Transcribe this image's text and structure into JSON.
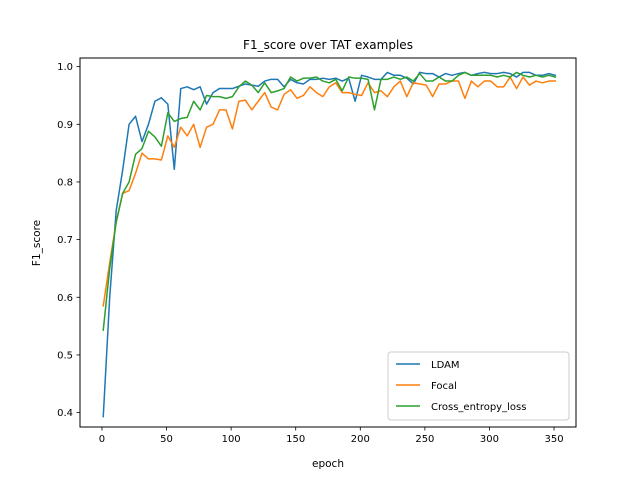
{
  "chart_data": {
    "type": "line",
    "title": "F1_score over TAT examples",
    "xlabel": "epoch",
    "ylabel": "F1_score",
    "xlim": [
      -17,
      367
    ],
    "ylim": [
      0.375,
      1.015
    ],
    "xticks": [
      0,
      50,
      100,
      150,
      200,
      250,
      300,
      350
    ],
    "yticks": [
      0.4,
      0.5,
      0.6,
      0.7,
      0.8,
      0.9,
      1.0
    ],
    "ytick_labels": [
      "0.4",
      "0.5",
      "0.6",
      "0.7",
      "0.8",
      "0.9",
      "1.0"
    ],
    "grid": false,
    "legend_position": "lower-right",
    "x": [
      1,
      6,
      11,
      16,
      21,
      26,
      31,
      36,
      41,
      46,
      51,
      56,
      61,
      66,
      71,
      76,
      81,
      86,
      91,
      96,
      101,
      106,
      111,
      116,
      121,
      126,
      131,
      136,
      141,
      146,
      151,
      156,
      161,
      166,
      171,
      176,
      181,
      186,
      191,
      196,
      201,
      206,
      211,
      216,
      221,
      226,
      231,
      236,
      241,
      246,
      251,
      256,
      261,
      266,
      271,
      276,
      281,
      286,
      291,
      296,
      301,
      306,
      311,
      316,
      321,
      326,
      331,
      336,
      341,
      346,
      351
    ],
    "series": [
      {
        "name": "LDAM",
        "color": "#1f77b4",
        "values": [
          0.393,
          0.6,
          0.75,
          0.82,
          0.9,
          0.914,
          0.87,
          0.9,
          0.94,
          0.946,
          0.935,
          0.822,
          0.962,
          0.965,
          0.96,
          0.965,
          0.935,
          0.955,
          0.962,
          0.962,
          0.962,
          0.966,
          0.97,
          0.968,
          0.966,
          0.975,
          0.978,
          0.978,
          0.965,
          0.978,
          0.972,
          0.97,
          0.978,
          0.978,
          0.98,
          0.978,
          0.98,
          0.975,
          0.98,
          0.94,
          0.985,
          0.982,
          0.978,
          0.978,
          0.99,
          0.985,
          0.985,
          0.98,
          0.97,
          0.99,
          0.988,
          0.988,
          0.982,
          0.988,
          0.985,
          0.988,
          0.99,
          0.985,
          0.988,
          0.99,
          0.988,
          0.988,
          0.99,
          0.988,
          0.982,
          0.99,
          0.99,
          0.985,
          0.985,
          0.988,
          0.985
        ]
      },
      {
        "name": "Focal",
        "color": "#ff7f0e",
        "values": [
          0.585,
          0.66,
          0.73,
          0.78,
          0.785,
          0.815,
          0.85,
          0.84,
          0.84,
          0.838,
          0.88,
          0.86,
          0.895,
          0.88,
          0.9,
          0.86,
          0.895,
          0.9,
          0.925,
          0.925,
          0.892,
          0.94,
          0.942,
          0.925,
          0.94,
          0.955,
          0.93,
          0.925,
          0.952,
          0.96,
          0.945,
          0.95,
          0.965,
          0.955,
          0.948,
          0.965,
          0.972,
          0.955,
          0.955,
          0.952,
          0.95,
          0.972,
          0.955,
          0.958,
          0.948,
          0.965,
          0.975,
          0.948,
          0.972,
          0.97,
          0.968,
          0.948,
          0.97,
          0.97,
          0.975,
          0.975,
          0.945,
          0.975,
          0.965,
          0.975,
          0.975,
          0.965,
          0.965,
          0.982,
          0.962,
          0.982,
          0.968,
          0.975,
          0.972,
          0.975,
          0.975
        ]
      },
      {
        "name": "Cross_entropy_loss",
        "color": "#2ca02c",
        "values": [
          0.543,
          0.65,
          0.73,
          0.78,
          0.8,
          0.848,
          0.858,
          0.888,
          0.878,
          0.862,
          0.92,
          0.905,
          0.91,
          0.912,
          0.94,
          0.925,
          0.95,
          0.948,
          0.948,
          0.945,
          0.948,
          0.965,
          0.975,
          0.968,
          0.955,
          0.972,
          0.955,
          0.958,
          0.962,
          0.982,
          0.975,
          0.98,
          0.98,
          0.982,
          0.975,
          0.972,
          0.978,
          0.958,
          0.982,
          0.98,
          0.98,
          0.978,
          0.925,
          0.978,
          0.978,
          0.982,
          0.978,
          0.982,
          0.975,
          0.988,
          0.975,
          0.975,
          0.982,
          0.975,
          0.975,
          0.985,
          0.99,
          0.985,
          0.985,
          0.985,
          0.985,
          0.982,
          0.985,
          0.982,
          0.99,
          0.985,
          0.982,
          0.985,
          0.982,
          0.985,
          0.982
        ]
      }
    ]
  }
}
